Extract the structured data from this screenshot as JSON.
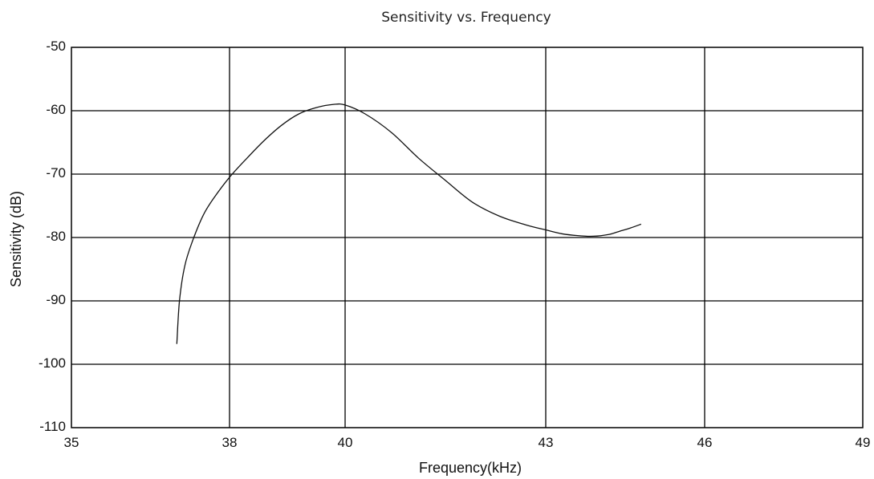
{
  "chart_data": {
    "type": "line",
    "title": "Sensitivity vs. Frequency",
    "xlabel": "Frequency(kHz)",
    "ylabel": "Sensitivity (dB)",
    "x_ticks": [
      35,
      38,
      40,
      43,
      46,
      49
    ],
    "y_ticks": [
      -50,
      -60,
      -70,
      -80,
      -90,
      -100,
      -110
    ],
    "ylim": [
      -110,
      -50
    ],
    "x_axis_scale": "non-uniform (tick labels evenly spaced by label order)",
    "grid": true,
    "series": [
      {
        "x": [
          37.0,
          37.05,
          37.15,
          37.3,
          37.5,
          37.7,
          38.0,
          38.3,
          38.6,
          38.9,
          39.2,
          39.5,
          39.8,
          40.0,
          40.3,
          40.7,
          41.1,
          41.5,
          41.9,
          42.3,
          42.7,
          43.0,
          43.3,
          43.6,
          43.9,
          44.2,
          44.4,
          44.6,
          44.8
        ],
        "y": [
          -96.8,
          -90.0,
          -84.5,
          -80.5,
          -76.5,
          -73.8,
          -70.5,
          -67.5,
          -64.7,
          -62.3,
          -60.5,
          -59.5,
          -59.0,
          -59.1,
          -60.5,
          -63.5,
          -67.5,
          -71.0,
          -74.4,
          -76.6,
          -78.0,
          -78.8,
          -79.4,
          -79.7,
          -79.8,
          -79.5,
          -79.0,
          -78.5,
          -77.9
        ]
      }
    ]
  }
}
